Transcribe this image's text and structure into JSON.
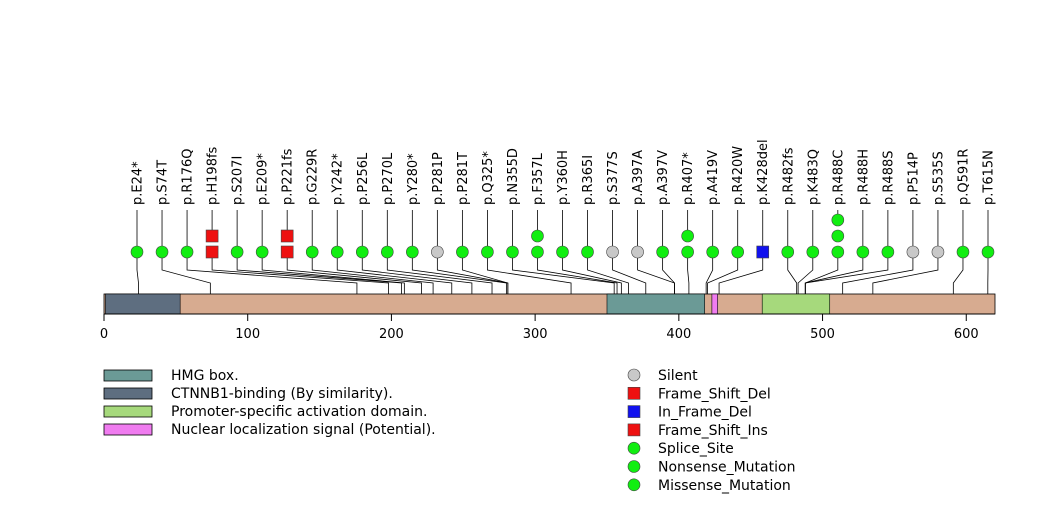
{
  "chart_data": {
    "type": "lollipop",
    "protein_length": 620,
    "x_ticks": [
      0,
      100,
      200,
      300,
      400,
      500,
      600
    ],
    "domains": [
      {
        "name": "CTNNB1-binding (By similarity).",
        "start": 1,
        "end": 53,
        "color": "#5e6e80"
      },
      {
        "name": "HMG box.",
        "start": 350,
        "end": 418,
        "color": "#6b9a96"
      },
      {
        "name": "Nuclear localization signal (Potential).",
        "start": 423,
        "end": 427,
        "color": "#f07cf0"
      },
      {
        "name": "Promoter-specific activation domain.",
        "start": 458,
        "end": 505,
        "color": "#a6d97c"
      }
    ],
    "backbone_color": "#d7ab90",
    "legend_domains": [
      {
        "name": "HMG box.",
        "color": "#6b9a96"
      },
      {
        "name": "CTNNB1-binding (By similarity).",
        "color": "#5e6e80"
      },
      {
        "name": "Promoter-specific activation domain.",
        "color": "#a6d97c"
      },
      {
        "name": "Nuclear localization signal (Potential).",
        "color": "#f07cf0"
      }
    ],
    "legend_mutations": [
      {
        "name": "Silent",
        "shape": "circle",
        "color": "#c8c8c8"
      },
      {
        "name": "Frame_Shift_Del",
        "shape": "square",
        "color": "#ee1111"
      },
      {
        "name": "In_Frame_Del",
        "shape": "square",
        "color": "#1111ee"
      },
      {
        "name": "Frame_Shift_Ins",
        "shape": "square",
        "color": "#ee1111"
      },
      {
        "name": "Splice_Site",
        "shape": "circle",
        "color": "#11ee11"
      },
      {
        "name": "Nonsense_Mutation",
        "shape": "circle",
        "color": "#11ee11"
      },
      {
        "name": "Missense_Mutation",
        "shape": "circle",
        "color": "#11ee11"
      }
    ],
    "mutations": [
      {
        "label": "p.E24*",
        "pos": 24,
        "markers": [
          {
            "shape": "circle",
            "color": "#11ee11"
          }
        ]
      },
      {
        "label": "p.S74T",
        "pos": 74,
        "markers": [
          {
            "shape": "circle",
            "color": "#11ee11"
          }
        ]
      },
      {
        "label": "p.R176Q",
        "pos": 176,
        "markers": [
          {
            "shape": "circle",
            "color": "#11ee11"
          }
        ]
      },
      {
        "label": "p.H198fs",
        "pos": 198,
        "markers": [
          {
            "shape": "square",
            "color": "#ee1111"
          },
          {
            "shape": "square",
            "color": "#ee1111"
          }
        ]
      },
      {
        "label": "p.S207I",
        "pos": 207,
        "markers": [
          {
            "shape": "circle",
            "color": "#11ee11"
          }
        ]
      },
      {
        "label": "p.E209*",
        "pos": 209,
        "markers": [
          {
            "shape": "circle",
            "color": "#11ee11"
          }
        ]
      },
      {
        "label": "p.P221fs",
        "pos": 221,
        "markers": [
          {
            "shape": "square",
            "color": "#ee1111"
          },
          {
            "shape": "square",
            "color": "#ee1111"
          }
        ]
      },
      {
        "label": "p.G229R",
        "pos": 229,
        "markers": [
          {
            "shape": "circle",
            "color": "#11ee11"
          }
        ]
      },
      {
        "label": "p.Y242*",
        "pos": 242,
        "markers": [
          {
            "shape": "circle",
            "color": "#11ee11"
          }
        ]
      },
      {
        "label": "p.P256L",
        "pos": 256,
        "markers": [
          {
            "shape": "circle",
            "color": "#11ee11"
          }
        ]
      },
      {
        "label": "p.P270L",
        "pos": 270,
        "markers": [
          {
            "shape": "circle",
            "color": "#11ee11"
          }
        ]
      },
      {
        "label": "p.Y280*",
        "pos": 280,
        "markers": [
          {
            "shape": "circle",
            "color": "#11ee11"
          }
        ]
      },
      {
        "label": "p.P281P",
        "pos": 281,
        "markers": [
          {
            "shape": "circle",
            "color": "#c8c8c8"
          }
        ]
      },
      {
        "label": "p.P281T",
        "pos": 281,
        "markers": [
          {
            "shape": "circle",
            "color": "#11ee11"
          }
        ]
      },
      {
        "label": "p.Q325*",
        "pos": 325,
        "markers": [
          {
            "shape": "circle",
            "color": "#11ee11"
          }
        ]
      },
      {
        "label": "p.N355D",
        "pos": 355,
        "markers": [
          {
            "shape": "circle",
            "color": "#11ee11"
          }
        ]
      },
      {
        "label": "p.F357L",
        "pos": 357,
        "markers": [
          {
            "shape": "circle",
            "color": "#11ee11"
          },
          {
            "shape": "circle",
            "color": "#11ee11"
          }
        ]
      },
      {
        "label": "p.Y360H",
        "pos": 360,
        "markers": [
          {
            "shape": "circle",
            "color": "#11ee11"
          }
        ]
      },
      {
        "label": "p.R365I",
        "pos": 365,
        "markers": [
          {
            "shape": "circle",
            "color": "#11ee11"
          }
        ]
      },
      {
        "label": "p.S377S",
        "pos": 377,
        "markers": [
          {
            "shape": "circle",
            "color": "#c8c8c8"
          }
        ]
      },
      {
        "label": "p.A397A",
        "pos": 397,
        "markers": [
          {
            "shape": "circle",
            "color": "#c8c8c8"
          }
        ]
      },
      {
        "label": "p.A397V",
        "pos": 397,
        "markers": [
          {
            "shape": "circle",
            "color": "#11ee11"
          }
        ]
      },
      {
        "label": "p.R407*",
        "pos": 407,
        "markers": [
          {
            "shape": "circle",
            "color": "#11ee11"
          },
          {
            "shape": "circle",
            "color": "#11ee11"
          }
        ]
      },
      {
        "label": "p.A419V",
        "pos": 419,
        "markers": [
          {
            "shape": "circle",
            "color": "#11ee11"
          }
        ]
      },
      {
        "label": "p.R420W",
        "pos": 420,
        "markers": [
          {
            "shape": "circle",
            "color": "#11ee11"
          }
        ]
      },
      {
        "label": "p.K428del",
        "pos": 428,
        "markers": [
          {
            "shape": "square",
            "color": "#1111ee"
          }
        ]
      },
      {
        "label": "p.R482fs",
        "pos": 482,
        "markers": [
          {
            "shape": "circle",
            "color": "#11ee11"
          }
        ]
      },
      {
        "label": "p.K483Q",
        "pos": 483,
        "markers": [
          {
            "shape": "circle",
            "color": "#11ee11"
          }
        ]
      },
      {
        "label": "p.R488C",
        "pos": 488,
        "markers": [
          {
            "shape": "circle",
            "color": "#11ee11"
          },
          {
            "shape": "circle",
            "color": "#11ee11"
          },
          {
            "shape": "circle",
            "color": "#11ee11"
          }
        ]
      },
      {
        "label": "p.R488H",
        "pos": 488,
        "markers": [
          {
            "shape": "circle",
            "color": "#11ee11"
          }
        ]
      },
      {
        "label": "p.R488S",
        "pos": 488,
        "markers": [
          {
            "shape": "circle",
            "color": "#11ee11"
          }
        ]
      },
      {
        "label": "p.P514P",
        "pos": 514,
        "markers": [
          {
            "shape": "circle",
            "color": "#c8c8c8"
          }
        ]
      },
      {
        "label": "p.S535S",
        "pos": 535,
        "markers": [
          {
            "shape": "circle",
            "color": "#c8c8c8"
          }
        ]
      },
      {
        "label": "p.Q591R",
        "pos": 591,
        "markers": [
          {
            "shape": "circle",
            "color": "#11ee11"
          }
        ]
      },
      {
        "label": "p.T615N",
        "pos": 615,
        "markers": [
          {
            "shape": "circle",
            "color": "#11ee11"
          }
        ]
      }
    ]
  }
}
